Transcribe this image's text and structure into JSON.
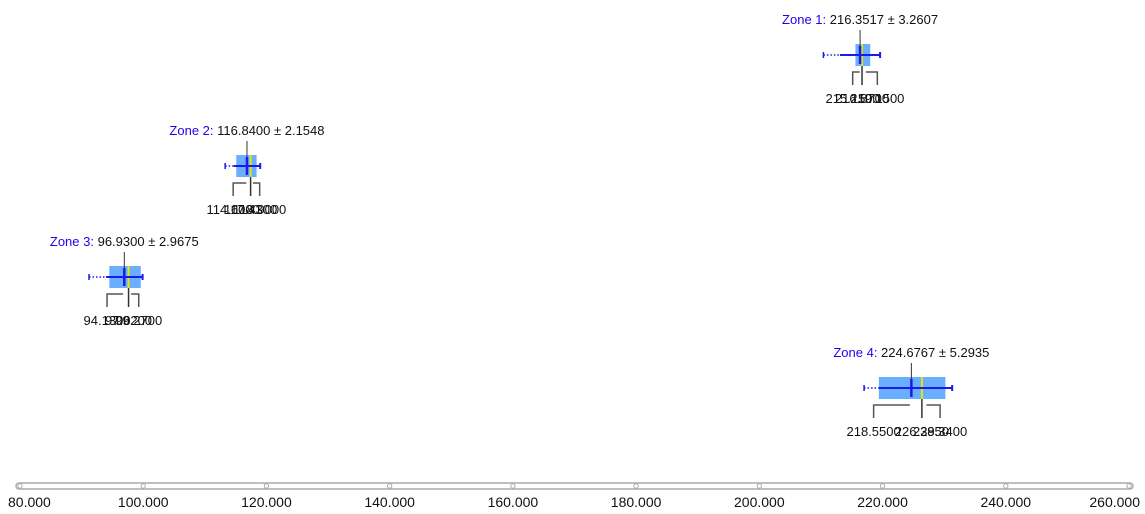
{
  "chart_data": {
    "type": "box",
    "x_axis": {
      "range": [
        80,
        260
      ],
      "ticks": [
        80,
        100,
        120,
        140,
        160,
        180,
        200,
        220,
        240,
        260
      ],
      "tick_labels": [
        "80.000",
        "100.000",
        "120.000",
        "140.000",
        "160.000",
        "180.000",
        "200.000",
        "220.000",
        "240.000",
        "260.000"
      ]
    },
    "zones": [
      {
        "name": "Zone 1:",
        "mean_label": "216.3517 ± 3.2607",
        "mean": 216.3517,
        "sd": 3.2607,
        "min": 215.15,
        "median": 216.67,
        "max": 219.15,
        "q1": 215.6,
        "q3": 218.0,
        "whisker_low": 213.1,
        "whisker_high": 219.6,
        "outlier_low": 210.4,
        "min_label": "215.1500",
        "median_label": "216.6700",
        "max_label": "219.1500"
      },
      {
        "name": "Zone 2:",
        "mean_label": "116.8400 ± 2.1548",
        "mean": 116.84,
        "sd": 2.1548,
        "min": 114.6,
        "median": 117.43,
        "max": 118.9,
        "q1": 115.1,
        "q3": 118.4,
        "whisker_low": 114.7,
        "whisker_high": 118.99,
        "outlier_low": 113.3,
        "min_label": "114.6000",
        "median_label": "117.4300",
        "max_label": "118.9000"
      },
      {
        "name": "Zone 3:",
        "mean_label": "96.9300 ± 2.9675",
        "mean": 96.93,
        "sd": 2.9675,
        "min": 94.13,
        "median": 97.62,
        "max": 99.27,
        "q1": 94.5,
        "q3": 99.6,
        "whisker_low": 93.97,
        "whisker_high": 99.9,
        "outlier_low": 91.2,
        "min_label": "94.1300",
        "median_label": "97.6200",
        "max_label": "99.2700"
      },
      {
        "name": "Zone 4:",
        "mean_label": "224.6767 ± 5.2935",
        "mean": 224.6767,
        "sd": 5.2935,
        "min": 218.55,
        "median": 226.385,
        "max": 229.34,
        "q1": 219.4,
        "q3": 230.2,
        "whisker_low": 219.4,
        "whisker_high": 231.3,
        "outlier_low": 217.0,
        "min_label": "218.5500",
        "median_label": "226.3850",
        "max_label": "229.3400"
      }
    ],
    "colors": {
      "box_fill": "#6aaeff",
      "mean_line": "#1a1aee",
      "median_line": "#e6e600",
      "zone_name": "#2200ee",
      "bracket": "#555555",
      "axis": "#aaaaaa"
    }
  }
}
